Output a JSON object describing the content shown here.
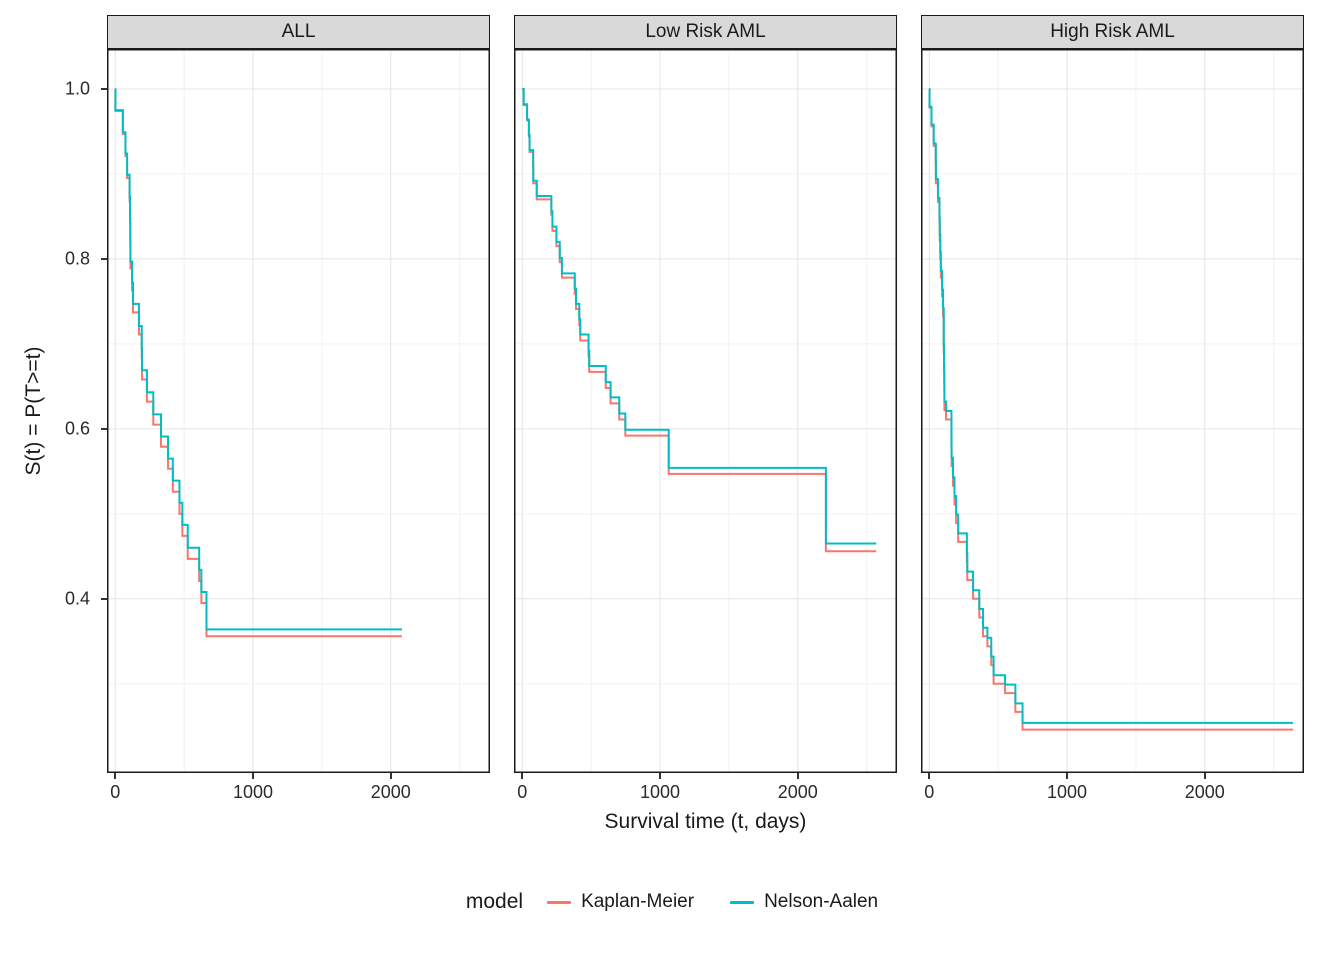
{
  "chart_data": {
    "type": "line",
    "step": true,
    "title": "",
    "xlabel": "Survival time (t, days)",
    "ylabel": "S(t) = P(T>=t)",
    "xlim": [
      -60,
      2720
    ],
    "ylim": [
      0.195,
      1.047
    ],
    "x_ticks": [
      0,
      1000,
      2000
    ],
    "y_ticks": [
      0.4,
      0.6,
      0.8,
      1.0
    ],
    "x_minor": [
      500,
      1500,
      2500
    ],
    "y_minor": [
      0.3,
      0.5,
      0.7,
      0.9
    ],
    "grid": true,
    "colors": {
      "grid_major": "#e4e4e4",
      "grid_minor": "#f2f2f2",
      "panel_border": "#1a1a1a",
      "strip_bg": "#d9d9d9",
      "tick_text": "#2b2b2b"
    },
    "legend": {
      "title": "model",
      "position": "bottom",
      "entries": [
        {
          "label": "Kaplan-Meier",
          "color": "#F8766D"
        },
        {
          "label": "Nelson-Aalen",
          "color": "#00BFC4"
        }
      ]
    },
    "facets": [
      {
        "label": "ALL",
        "t_max": 2081,
        "series": [
          {
            "name": "Kaplan-Meier",
            "points": [
              [
                0,
                1.0
              ],
              [
                1,
                0.974
              ],
              [
                55,
                0.947
              ],
              [
                74,
                0.921
              ],
              [
                86,
                0.895
              ],
              [
                104,
                0.868
              ],
              [
                107,
                0.842
              ],
              [
                109,
                0.816
              ],
              [
                110,
                0.789
              ],
              [
                122,
                0.763
              ],
              [
                129,
                0.737
              ],
              [
                172,
                0.711
              ],
              [
                192,
                0.684
              ],
              [
                194,
                0.658
              ],
              [
                230,
                0.632
              ],
              [
                276,
                0.605
              ],
              [
                332,
                0.579
              ],
              [
                383,
                0.553
              ],
              [
                418,
                0.526
              ],
              [
                466,
                0.5
              ],
              [
                487,
                0.474
              ],
              [
                526,
                0.447
              ],
              [
                609,
                0.421
              ],
              [
                625,
                0.395
              ],
              [
                662,
                0.356
              ]
            ]
          },
          {
            "name": "Nelson-Aalen",
            "points": [
              [
                0,
                1.0
              ],
              [
                1,
                0.975
              ],
              [
                55,
                0.949
              ],
              [
                74,
                0.924
              ],
              [
                86,
                0.899
              ],
              [
                104,
                0.873
              ],
              [
                107,
                0.848
              ],
              [
                109,
                0.823
              ],
              [
                110,
                0.797
              ],
              [
                122,
                0.772
              ],
              [
                129,
                0.747
              ],
              [
                172,
                0.721
              ],
              [
                192,
                0.695
              ],
              [
                194,
                0.669
              ],
              [
                230,
                0.643
              ],
              [
                276,
                0.617
              ],
              [
                332,
                0.591
              ],
              [
                383,
                0.565
              ],
              [
                418,
                0.539
              ],
              [
                466,
                0.513
              ],
              [
                487,
                0.487
              ],
              [
                526,
                0.46
              ],
              [
                609,
                0.434
              ],
              [
                625,
                0.408
              ],
              [
                662,
                0.364
              ]
            ]
          }
        ]
      },
      {
        "label": "Low Risk AML",
        "t_max": 2569,
        "series": [
          {
            "name": "Kaplan-Meier",
            "points": [
              [
                0,
                1.0
              ],
              [
                10,
                0.981
              ],
              [
                35,
                0.963
              ],
              [
                48,
                0.944
              ],
              [
                53,
                0.926
              ],
              [
                79,
                0.907
              ],
              [
                80,
                0.889
              ],
              [
                105,
                0.87
              ],
              [
                211,
                0.852
              ],
              [
                219,
                0.833
              ],
              [
                248,
                0.815
              ],
              [
                272,
                0.796
              ],
              [
                288,
                0.778
              ],
              [
                381,
                0.759
              ],
              [
                390,
                0.741
              ],
              [
                414,
                0.722
              ],
              [
                421,
                0.704
              ],
              [
                481,
                0.685
              ],
              [
                486,
                0.667
              ],
              [
                606,
                0.648
              ],
              [
                641,
                0.63
              ],
              [
                704,
                0.611
              ],
              [
                748,
                0.592
              ],
              [
                1063,
                0.547
              ],
              [
                2204,
                0.456
              ]
            ]
          },
          {
            "name": "Nelson-Aalen",
            "points": [
              [
                0,
                1.0
              ],
              [
                10,
                0.982
              ],
              [
                35,
                0.964
              ],
              [
                48,
                0.946
              ],
              [
                53,
                0.928
              ],
              [
                79,
                0.91
              ],
              [
                80,
                0.892
              ],
              [
                105,
                0.874
              ],
              [
                211,
                0.856
              ],
              [
                219,
                0.838
              ],
              [
                248,
                0.82
              ],
              [
                272,
                0.801
              ],
              [
                288,
                0.783
              ],
              [
                381,
                0.765
              ],
              [
                390,
                0.747
              ],
              [
                414,
                0.729
              ],
              [
                421,
                0.711
              ],
              [
                481,
                0.692
              ],
              [
                486,
                0.674
              ],
              [
                606,
                0.655
              ],
              [
                641,
                0.637
              ],
              [
                704,
                0.618
              ],
              [
                748,
                0.599
              ],
              [
                1063,
                0.554
              ],
              [
                2204,
                0.465
              ]
            ]
          }
        ]
      },
      {
        "label": "High Risk AML",
        "t_max": 2640,
        "series": [
          {
            "name": "Kaplan-Meier",
            "points": [
              [
                0,
                1.0
              ],
              [
                2,
                0.978
              ],
              [
                16,
                0.956
              ],
              [
                32,
                0.933
              ],
              [
                47,
                0.911
              ],
              [
                48,
                0.889
              ],
              [
                63,
                0.867
              ],
              [
                74,
                0.844
              ],
              [
                76,
                0.822
              ],
              [
                80,
                0.8
              ],
              [
                84,
                0.778
              ],
              [
                93,
                0.756
              ],
              [
                100,
                0.733
              ],
              [
                105,
                0.689
              ],
              [
                107,
                0.667
              ],
              [
                109,
                0.644
              ],
              [
                110,
                0.622
              ],
              [
                122,
                0.611
              ],
              [
                161,
                0.578
              ],
              [
                162,
                0.556
              ],
              [
                172,
                0.533
              ],
              [
                183,
                0.511
              ],
              [
                195,
                0.489
              ],
              [
                210,
                0.467
              ],
              [
                273,
                0.444
              ],
              [
                276,
                0.422
              ],
              [
                318,
                0.4
              ],
              [
                363,
                0.378
              ],
              [
                390,
                0.356
              ],
              [
                422,
                0.344
              ],
              [
                450,
                0.322
              ],
              [
                467,
                0.3
              ],
              [
                550,
                0.289
              ],
              [
                625,
                0.267
              ],
              [
                677,
                0.246
              ]
            ]
          },
          {
            "name": "Nelson-Aalen",
            "points": [
              [
                0,
                1.0
              ],
              [
                2,
                0.979
              ],
              [
                16,
                0.958
              ],
              [
                32,
                0.936
              ],
              [
                47,
                0.915
              ],
              [
                48,
                0.894
              ],
              [
                63,
                0.872
              ],
              [
                74,
                0.85
              ],
              [
                76,
                0.829
              ],
              [
                80,
                0.808
              ],
              [
                84,
                0.786
              ],
              [
                93,
                0.764
              ],
              [
                100,
                0.742
              ],
              [
                105,
                0.698
              ],
              [
                107,
                0.676
              ],
              [
                109,
                0.654
              ],
              [
                110,
                0.632
              ],
              [
                122,
                0.621
              ],
              [
                161,
                0.588
              ],
              [
                162,
                0.566
              ],
              [
                172,
                0.543
              ],
              [
                183,
                0.521
              ],
              [
                195,
                0.499
              ],
              [
                210,
                0.477
              ],
              [
                273,
                0.454
              ],
              [
                276,
                0.432
              ],
              [
                318,
                0.41
              ],
              [
                363,
                0.388
              ],
              [
                390,
                0.366
              ],
              [
                422,
                0.354
              ],
              [
                450,
                0.332
              ],
              [
                467,
                0.31
              ],
              [
                550,
                0.299
              ],
              [
                625,
                0.277
              ],
              [
                677,
                0.254
              ]
            ]
          }
        ]
      }
    ]
  }
}
